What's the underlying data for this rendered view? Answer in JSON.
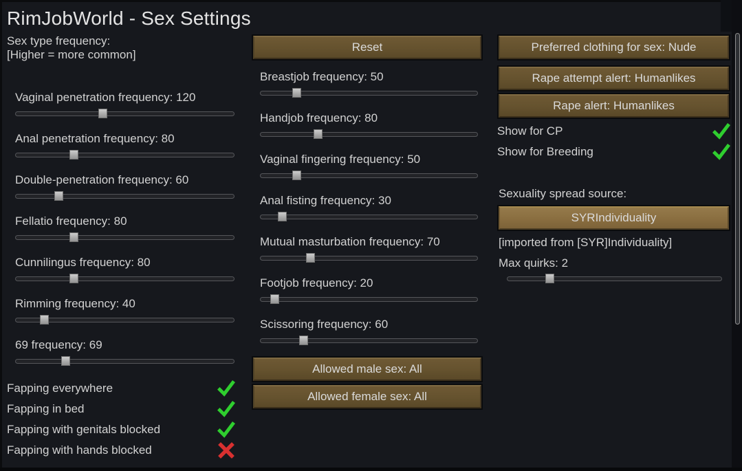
{
  "window": {
    "title": "RimJobWorld - Sex Settings"
  },
  "colors": {
    "background": "#16181d",
    "button_brown": "#65522e",
    "button_brown_light": "#8a6e40",
    "check_green": "#2fce2f",
    "cross_red": "#d83030",
    "text": "#d2d2d2"
  },
  "left": {
    "header_line1": "Sex type frequency:",
    "header_line2": "[Higher = more common]",
    "sliders": [
      {
        "label": "Vaginal penetration frequency: 120",
        "value": 120,
        "max": 300
      },
      {
        "label": "Anal penetration frequency: 80",
        "value": 80,
        "max": 300
      },
      {
        "label": "Double-penetration frequency: 60",
        "value": 60,
        "max": 300
      },
      {
        "label": "Fellatio frequency: 80",
        "value": 80,
        "max": 300
      },
      {
        "label": "Cunnilingus frequency: 80",
        "value": 80,
        "max": 300
      },
      {
        "label": "Rimming frequency: 40",
        "value": 40,
        "max": 300
      },
      {
        "label": "69 frequency: 69",
        "value": 69,
        "max": 300
      }
    ],
    "checkboxes": [
      {
        "label": "Fapping everywhere",
        "checked": true
      },
      {
        "label": "Fapping in bed",
        "checked": true
      },
      {
        "label": "Fapping with genitals blocked",
        "checked": true
      },
      {
        "label": "Fapping with hands blocked",
        "checked": false
      }
    ]
  },
  "middle": {
    "reset_label": "Reset",
    "sliders": [
      {
        "label": "Breastjob frequency: 50",
        "value": 50,
        "max": 300
      },
      {
        "label": "Handjob frequency: 80",
        "value": 80,
        "max": 300
      },
      {
        "label": "Vaginal fingering frequency: 50",
        "value": 50,
        "max": 300
      },
      {
        "label": "Anal fisting frequency: 30",
        "value": 30,
        "max": 300
      },
      {
        "label": "Mutual masturbation frequency: 70",
        "value": 70,
        "max": 300
      },
      {
        "label": "Footjob frequency: 20",
        "value": 20,
        "max": 300
      },
      {
        "label": "Scissoring frequency: 60",
        "value": 60,
        "max": 300
      }
    ],
    "buttons": [
      "Allowed male sex: All",
      "Allowed female sex: All"
    ]
  },
  "right": {
    "buttons": [
      "Preferred clothing for sex: Nude",
      "Rape attempt alert: Humanlikes",
      "Rape alert: Humanlikes"
    ],
    "checkboxes": [
      {
        "label": "Show for CP",
        "checked": true
      },
      {
        "label": "Show for Breeding",
        "checked": true
      }
    ],
    "spread_source_label": "Sexuality spread source:",
    "spread_source_button": "SYRIndividuality",
    "imported_note": "[imported from [SYR]Individuality]",
    "max_quirks": {
      "label": "Max quirks: 2",
      "value": 2,
      "max": 10
    }
  }
}
